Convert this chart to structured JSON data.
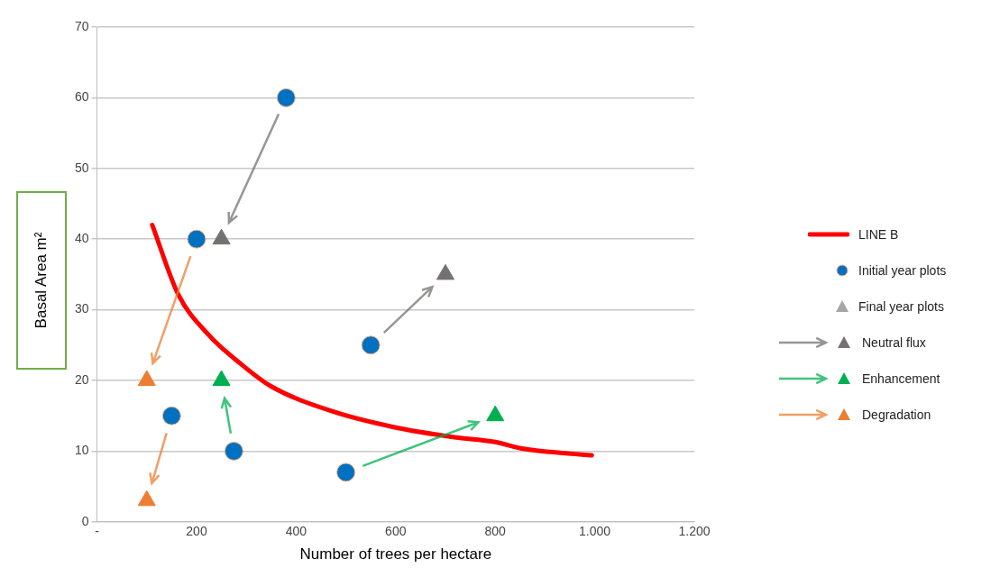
{
  "chart_data": {
    "type": "scatter",
    "xlabel": "Number of trees per hectare",
    "ylabel": "Basal Area m²",
    "xlim": [
      0,
      1200
    ],
    "xticks": [
      {
        "value": 0,
        "label": "-"
      },
      200,
      400,
      600,
      800,
      {
        "value": 1000,
        "label": "1.000"
      },
      {
        "value": 1200,
        "label": "1.200"
      }
    ],
    "ylim": [
      0,
      70
    ],
    "yticks": [
      0,
      10,
      20,
      30,
      40,
      50,
      60,
      70
    ],
    "grid": "y",
    "legend": "right",
    "annotations": [
      "Final year plots"
    ],
    "series": [
      {
        "name": "LINE B",
        "type": "line",
        "color": "#ff0000",
        "marker": "none",
        "x": [
          111,
          163,
          225,
          288,
          349,
          474,
          596,
          715,
          800,
          851,
          994
        ],
        "values": [
          42,
          32.2,
          26.4,
          22.4,
          19.2,
          15.6,
          13.4,
          12,
          11.3,
          10.4,
          9.4
        ]
      },
      {
        "name": "Initial year plots",
        "color": "#0070c0",
        "marker": "circle",
        "x": [
          380,
          550,
          275,
          500,
          200,
          150
        ],
        "values": [
          60,
          25,
          10,
          7,
          40,
          15
        ]
      },
      {
        "name": "Neutral flux",
        "color": "#767171",
        "marker": "triangle",
        "x": [
          250,
          700
        ],
        "values": [
          40,
          35
        ]
      },
      {
        "name": "Enhancement",
        "color": "#00b050",
        "marker": "triangle",
        "x": [
          250,
          800
        ],
        "values": [
          20,
          15
        ]
      },
      {
        "name": "Degradation",
        "color": "#ed7d31",
        "marker": "triangle",
        "x": [
          100,
          100
        ],
        "values": [
          20,
          3
        ]
      }
    ]
  }
}
